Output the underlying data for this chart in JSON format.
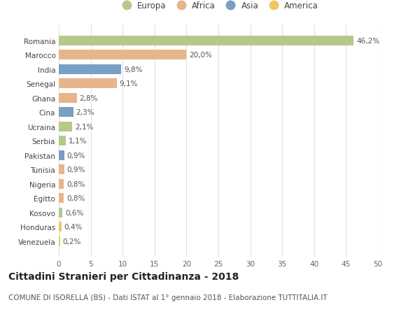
{
  "countries": [
    "Romania",
    "Marocco",
    "India",
    "Senegal",
    "Ghana",
    "Cina",
    "Ucraina",
    "Serbia",
    "Pakistan",
    "Tunisia",
    "Nigeria",
    "Egitto",
    "Kosovo",
    "Honduras",
    "Venezuela"
  ],
  "values": [
    46.2,
    20.0,
    9.8,
    9.1,
    2.8,
    2.3,
    2.1,
    1.1,
    0.9,
    0.9,
    0.8,
    0.8,
    0.6,
    0.4,
    0.2
  ],
  "labels": [
    "46,2%",
    "20,0%",
    "9,8%",
    "9,1%",
    "2,8%",
    "2,3%",
    "2,1%",
    "1,1%",
    "0,9%",
    "0,9%",
    "0,8%",
    "0,8%",
    "0,6%",
    "0,4%",
    "0,2%"
  ],
  "continents": [
    "Europa",
    "Africa",
    "Asia",
    "Africa",
    "Africa",
    "Asia",
    "Europa",
    "Europa",
    "Asia",
    "Africa",
    "Africa",
    "Africa",
    "Europa",
    "America",
    "America"
  ],
  "continent_colors": {
    "Europa": "#b5c98a",
    "Africa": "#e8b48a",
    "Asia": "#7a9ec4",
    "America": "#f0c860"
  },
  "legend_order": [
    "Europa",
    "Africa",
    "Asia",
    "America"
  ],
  "title": "Cittadini Stranieri per Cittadinanza - 2018",
  "subtitle": "COMUNE DI ISORELLA (BS) - Dati ISTAT al 1° gennaio 2018 - Elaborazione TUTTITALIA.IT",
  "xlim": [
    0,
    50
  ],
  "xticks": [
    0,
    5,
    10,
    15,
    20,
    25,
    30,
    35,
    40,
    45,
    50
  ],
  "background_color": "#ffffff",
  "grid_color": "#e0e0e0",
  "bar_height": 0.68,
  "title_fontsize": 10,
  "subtitle_fontsize": 7.5,
  "label_fontsize": 7.5,
  "tick_fontsize": 7.5,
  "legend_fontsize": 8.5
}
